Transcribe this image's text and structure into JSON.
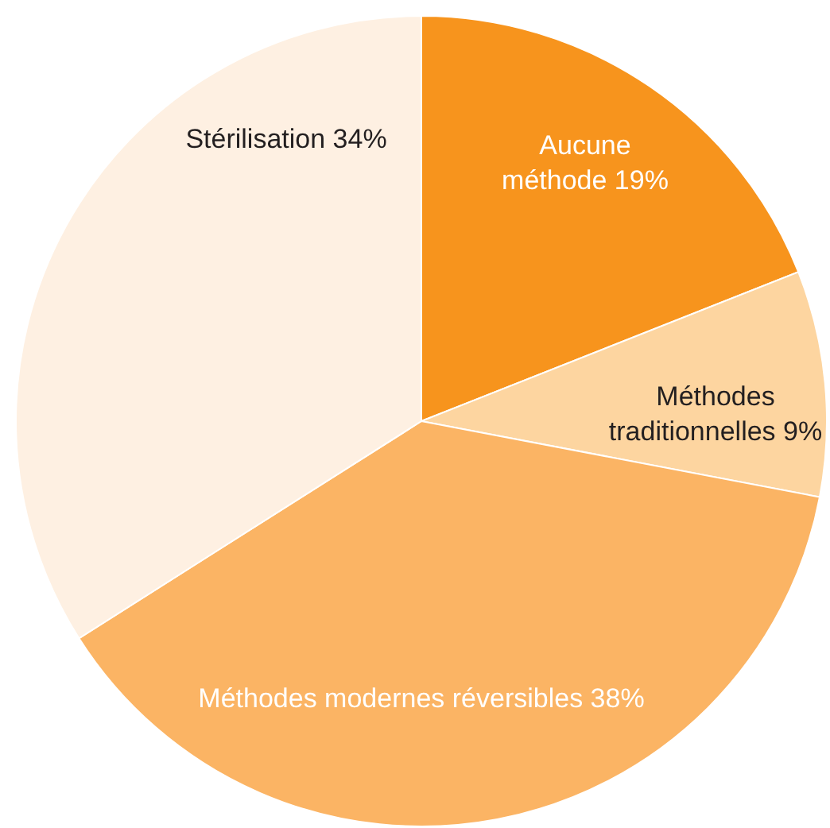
{
  "chart_data": {
    "type": "pie",
    "categories": [
      "Aucune méthode",
      "Méthodes traditionnelles",
      "Méthodes modernes réversibles",
      "Stérilisation"
    ],
    "values": [
      19,
      9,
      38,
      34
    ],
    "value_labels": [
      "19%",
      "9%",
      "38%",
      "34%"
    ],
    "colors": [
      "#f7941d",
      "#fdd5a0",
      "#fbb464",
      "#fef0e2"
    ]
  }
}
